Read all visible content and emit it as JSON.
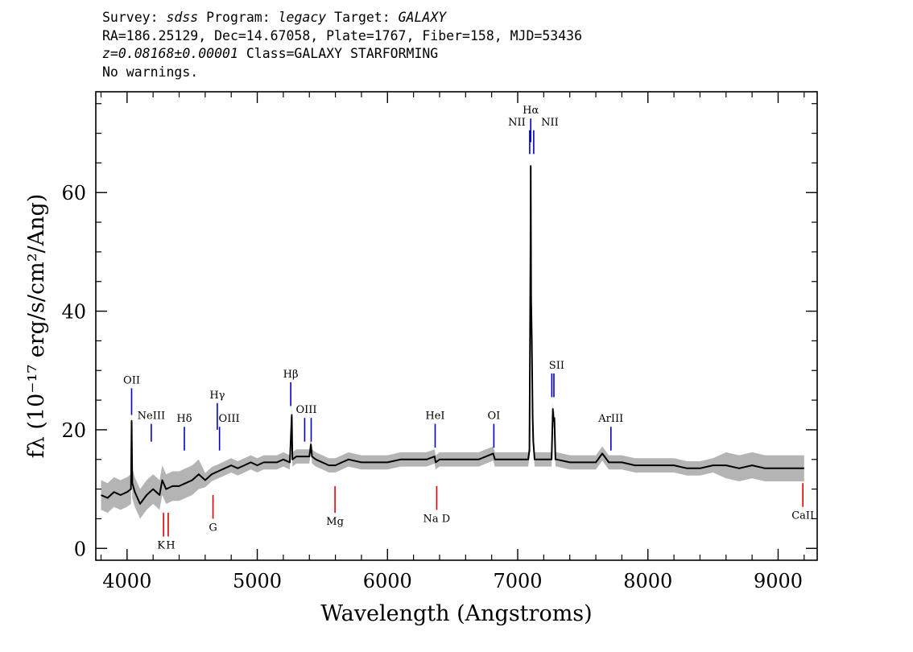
{
  "header": {
    "survey_label": "Survey:",
    "survey": "sdss",
    "program_label": "Program:",
    "program": "legacy",
    "target_label": "Target:",
    "target": "GALAXY",
    "coords": "RA=186.25129, Dec=14.67058, Plate=1767, Fiber=158, MJD=53436",
    "redshift": "z=0.08168±0.00001",
    "class": "Class=GALAXY STARFORMING",
    "warnings": "No warnings."
  },
  "chart_data": {
    "type": "line",
    "xlabel": "Wavelength (Angstroms)",
    "ylabel": "fλ (10⁻¹⁷ erg/s/cm²/Ang)",
    "xlim": [
      3760,
      9300
    ],
    "ylim": [
      -2,
      77
    ],
    "xticks": [
      4000,
      5000,
      6000,
      7000,
      8000,
      9000
    ],
    "yticks": [
      0,
      20,
      40,
      60
    ],
    "grid": false,
    "colors": {
      "spectrum": "#000000",
      "error": "#b4b4b4",
      "emission": "#0000cc",
      "absorption": "#dd0000"
    },
    "series": [
      {
        "name": "",
        "x": [
          3800,
          3850,
          3900,
          3950,
          4000,
          4030,
          4035,
          4040,
          4060,
          4100,
          4150,
          4200,
          4250,
          4270,
          4300,
          4350,
          4400,
          4450,
          4500,
          4550,
          4600,
          4650,
          4700,
          4750,
          4800,
          4850,
          4900,
          4950,
          5000,
          5050,
          5100,
          5150,
          5200,
          5250,
          5265,
          5270,
          5300,
          5350,
          5400,
          5412,
          5420,
          5450,
          5500,
          5550,
          5600,
          5650,
          5700,
          5800,
          5900,
          6000,
          6100,
          6200,
          6300,
          6362,
          6370,
          6400,
          6500,
          6600,
          6700,
          6812,
          6825,
          6900,
          7000,
          7080,
          7090,
          7098,
          7100,
          7103,
          7108,
          7115,
          7120,
          7130,
          7140,
          7200,
          7260,
          7270,
          7275,
          7282,
          7290,
          7300,
          7400,
          7500,
          7600,
          7650,
          7700,
          7800,
          7900,
          8000,
          8100,
          8200,
          8300,
          8400,
          8500,
          8600,
          8700,
          8800,
          8900,
          9000,
          9100,
          9200
        ],
        "y": [
          9,
          8.5,
          9.5,
          9,
          9.5,
          10,
          21.5,
          11,
          9.5,
          7.5,
          9,
          10,
          9,
          11.5,
          10,
          10.5,
          10.5,
          11,
          11.5,
          12.5,
          11.5,
          12.5,
          13,
          13.5,
          14,
          13.5,
          14,
          14.5,
          14,
          14.5,
          14.5,
          14.5,
          15,
          14.5,
          22.5,
          15,
          15.5,
          15.5,
          15.5,
          17.5,
          15.5,
          15,
          14.5,
          14,
          14,
          14.5,
          15,
          14.5,
          14.5,
          14.5,
          15,
          15,
          15,
          15.5,
          14.5,
          15,
          15,
          15,
          15,
          16,
          15,
          15,
          15,
          15,
          16.5,
          50,
          64.5,
          42,
          35.5,
          22,
          18,
          15,
          15,
          15,
          15,
          23.5,
          21.5,
          22,
          15,
          15,
          14.5,
          14.5,
          14.5,
          16,
          14.5,
          14.5,
          14,
          14,
          14,
          14,
          13.5,
          13.5,
          14,
          14,
          13.5,
          14,
          13.5,
          13.5,
          13.5,
          13.5
        ]
      }
    ],
    "emission_lines": [
      {
        "label": "OII",
        "x": 4035,
        "y0": 22.5,
        "y1": 27
      },
      {
        "label": "NeIII",
        "x": 4186,
        "y0": 18,
        "y1": 21
      },
      {
        "label": "Hδ",
        "x": 4440,
        "y0": 16.5,
        "y1": 20.5
      },
      {
        "label": "Hγ",
        "x": 4693,
        "y0": 20,
        "y1": 24.5
      },
      {
        "label": "OIII",
        "x": 4710,
        "y0": 16.5,
        "y1": 20.5
      },
      {
        "label": "Hβ",
        "x": 5257,
        "y0": 24,
        "y1": 28
      },
      {
        "label": "OIII",
        "x": 5364,
        "y0": 18,
        "y1": 22
      },
      {
        "label": "OIII",
        "x": 5414,
        "y0": 18,
        "y1": 22
      },
      {
        "label": "HeI",
        "x": 6366,
        "y0": 17,
        "y1": 21
      },
      {
        "label": "OI",
        "x": 6817,
        "y0": 17,
        "y1": 21
      },
      {
        "label": "NII",
        "x": 7092,
        "y0": 66.5,
        "y1": 70.5
      },
      {
        "label": "Hα",
        "x": 7100,
        "y0": 68.5,
        "y1": 72.5
      },
      {
        "label": "NII",
        "x": 7123,
        "y0": 66.5,
        "y1": 70.5
      },
      {
        "label": "SII",
        "x": 7262,
        "y0": 25.5,
        "y1": 29.5
      },
      {
        "label": "SII",
        "x": 7278,
        "y0": 25.5,
        "y1": 29.5
      },
      {
        "label": "ArIII",
        "x": 7716,
        "y0": 16.5,
        "y1": 20.5
      }
    ],
    "absorption_lines": [
      {
        "label": "K",
        "x": 4280,
        "y0": 2,
        "y1": 6
      },
      {
        "label": "H",
        "x": 4316,
        "y0": 2,
        "y1": 6
      },
      {
        "label": "G",
        "x": 4660,
        "y0": 5,
        "y1": 9
      },
      {
        "label": "Mg",
        "x": 5597,
        "y0": 6,
        "y1": 10.5
      },
      {
        "label": "Na D",
        "x": 6378,
        "y0": 6.5,
        "y1": 10.5
      },
      {
        "label": "CaII",
        "x": 9190,
        "y0": 7,
        "y1": 11
      }
    ]
  }
}
